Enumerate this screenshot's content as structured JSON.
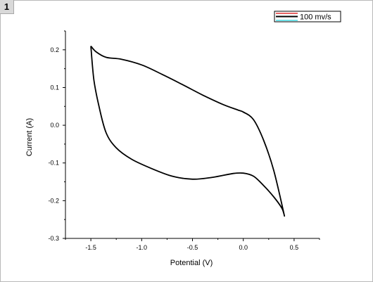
{
  "page": {
    "badge": "1"
  },
  "chart_data": {
    "type": "line",
    "title": "",
    "xlabel": "Potential (V)",
    "ylabel": "Current (A)",
    "xlim": [
      -1.75,
      0.75
    ],
    "ylim": [
      -0.3,
      0.25
    ],
    "x_ticks": [
      -1.5,
      -1.0,
      -0.5,
      0.0,
      0.5
    ],
    "x_tick_labels": [
      "-1.5",
      "-1.0",
      "-0.5",
      "0.0",
      "0.5"
    ],
    "y_ticks": [
      -0.3,
      -0.2,
      -0.1,
      0.0,
      0.1,
      0.2
    ],
    "y_tick_labels": [
      "-0.3",
      "-0.2",
      "-0.1",
      "0.0",
      "0.1",
      "0.2"
    ],
    "grid": false,
    "legend_position": "top-right",
    "colors": {
      "series": "#000000",
      "legend_accent_top": "#e03030",
      "legend_accent_bottom": "#40d8e0"
    },
    "series": [
      {
        "name": "100 mv/s",
        "x": [
          -1.5,
          -1.45,
          -1.35,
          -1.2,
          -1.0,
          -0.8,
          -0.6,
          -0.4,
          -0.2,
          -0.05,
          0.0,
          0.1,
          0.2,
          0.3,
          0.4,
          0.38,
          0.3,
          0.2,
          0.1,
          0.0,
          -0.1,
          -0.3,
          -0.5,
          -0.7,
          -0.9,
          -1.1,
          -1.25,
          -1.35,
          -1.42,
          -1.47,
          -1.5
        ],
        "y": [
          0.21,
          0.195,
          0.18,
          0.175,
          0.16,
          0.135,
          0.108,
          0.08,
          0.055,
          0.04,
          0.035,
          0.015,
          -0.04,
          -0.12,
          -0.235,
          -0.22,
          -0.19,
          -0.16,
          -0.135,
          -0.127,
          -0.128,
          -0.138,
          -0.143,
          -0.135,
          -0.115,
          -0.09,
          -0.06,
          -0.02,
          0.05,
          0.12,
          0.21
        ]
      }
    ]
  }
}
